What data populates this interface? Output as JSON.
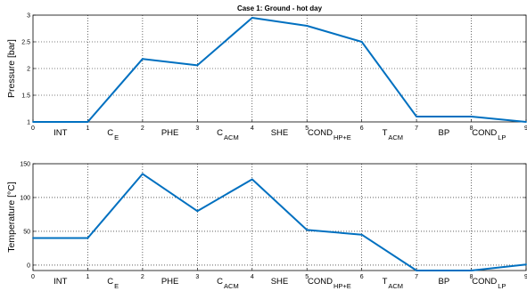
{
  "chart_data": [
    {
      "type": "line",
      "title": "Case 1: Ground - hot day",
      "xlabel": "",
      "ylabel": "Pressure [bar]",
      "x": [
        0,
        1,
        2,
        3,
        4,
        5,
        6,
        7,
        8,
        9
      ],
      "xlim": [
        0,
        9
      ],
      "ylim": [
        1,
        3
      ],
      "xticks": [
        0,
        1,
        2,
        3,
        4,
        5,
        6,
        7,
        8,
        9
      ],
      "yticks": [
        1,
        1.5,
        2,
        2.5,
        3
      ],
      "grid": true,
      "series": [
        {
          "values": [
            1.0,
            1.0,
            2.18,
            2.06,
            2.95,
            2.8,
            2.5,
            1.1,
            1.1,
            1.0
          ]
        }
      ],
      "stages": [
        {
          "main": "INT",
          "sub": ""
        },
        {
          "main": "C",
          "sub": "E"
        },
        {
          "main": "PHE",
          "sub": ""
        },
        {
          "main": "C",
          "sub": "ACM"
        },
        {
          "main": "SHE",
          "sub": ""
        },
        {
          "main": "COND",
          "sub": "HP+E"
        },
        {
          "main": "T",
          "sub": "ACM"
        },
        {
          "main": "BP",
          "sub": ""
        },
        {
          "main": "COND",
          "sub": "LP"
        }
      ]
    },
    {
      "type": "line",
      "title": "",
      "xlabel": "",
      "ylabel": "Temperature [°C]",
      "x": [
        0,
        1,
        2,
        3,
        4,
        5,
        6,
        7,
        8,
        9
      ],
      "xlim": [
        0,
        9
      ],
      "ylim": [
        -8,
        150
      ],
      "xticks": [
        0,
        1,
        2,
        3,
        4,
        5,
        6,
        7,
        8,
        9
      ],
      "yticks": [
        0,
        50,
        100,
        150
      ],
      "grid": true,
      "series": [
        {
          "values": [
            40,
            40,
            135,
            80,
            127,
            52,
            45,
            -8,
            -8,
            1
          ]
        }
      ],
      "stages": [
        {
          "main": "INT",
          "sub": ""
        },
        {
          "main": "C",
          "sub": "E"
        },
        {
          "main": "PHE",
          "sub": ""
        },
        {
          "main": "C",
          "sub": "ACM"
        },
        {
          "main": "SHE",
          "sub": ""
        },
        {
          "main": "COND",
          "sub": "HP+E"
        },
        {
          "main": "T",
          "sub": "ACM"
        },
        {
          "main": "BP",
          "sub": ""
        },
        {
          "main": "COND",
          "sub": "LP"
        }
      ]
    }
  ],
  "colors": {
    "series": "#0070c0"
  }
}
